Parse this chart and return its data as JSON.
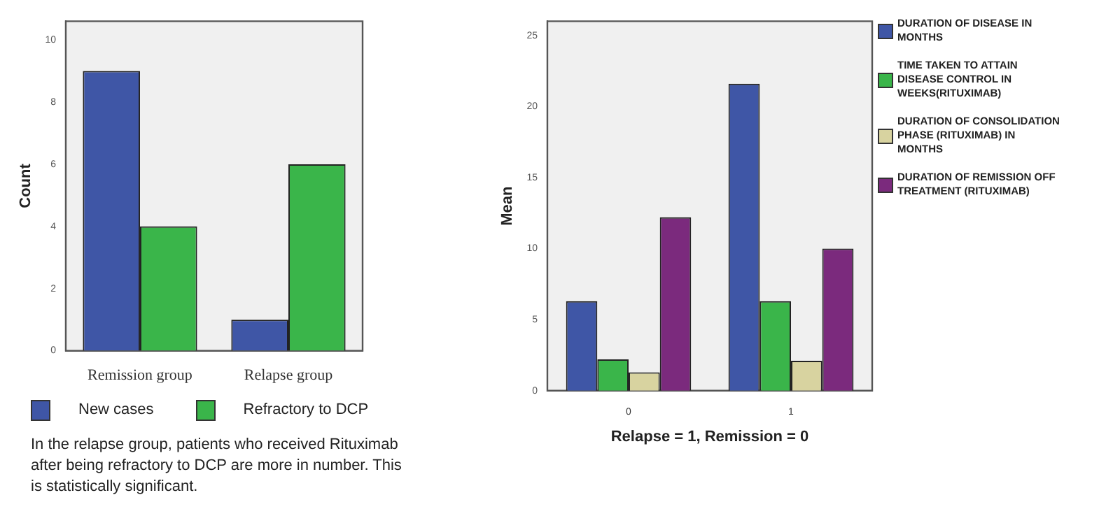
{
  "chart_data": [
    {
      "type": "bar",
      "ylabel": "Count",
      "categories": [
        "Remission group",
        "Relapse group"
      ],
      "series": [
        {
          "name": "New cases",
          "color": "#3f56a6",
          "values": [
            9,
            1
          ]
        },
        {
          "name": "Refractory to DCP",
          "color": "#3ab54a",
          "values": [
            4,
            6
          ]
        }
      ],
      "ylim": [
        0,
        10.6
      ],
      "yticks": [
        0,
        2,
        4,
        6,
        8,
        10
      ],
      "grid": false,
      "legend": "bottom",
      "annotations": [
        "In the relapse group, patients who received Rituximab after being refractory to DCP are more in number. This is statistically significant."
      ]
    },
    {
      "type": "bar",
      "ylabel": "Mean",
      "xlabel": "Relapse = 1, Remission = 0",
      "categories": [
        "0",
        "1"
      ],
      "series": [
        {
          "name": "DURATION OF DISEASE IN MONTHS",
          "color": "#3f56a6",
          "values": [
            6.3,
            21.6
          ]
        },
        {
          "name": "TIME TAKEN TO ATTAIN DISEASE CONTROL IN WEEKS(RITUXIMAB)",
          "color": "#3ab54a",
          "values": [
            2.2,
            6.3
          ]
        },
        {
          "name": "DURATION OF CONSOLIDATION PHASE (RITUXIMAB) IN MONTHS",
          "color": "#d8d3a0",
          "values": [
            1.3,
            2.1
          ]
        },
        {
          "name": "DURATION OF REMISSION OFF TREATMENT (RITUXIMAB)",
          "color": "#7b2a7d",
          "values": [
            12.2,
            10
          ]
        }
      ],
      "ylim": [
        0,
        26
      ],
      "yticks": [
        0,
        5,
        10,
        15,
        20,
        25
      ],
      "grid": false,
      "legend": "right"
    }
  ]
}
